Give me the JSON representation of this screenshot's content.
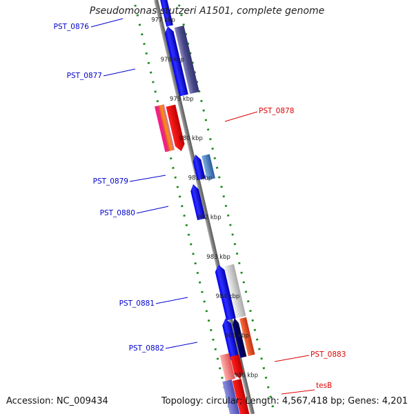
{
  "title": "Pseudomonas stutzeri A1501, complete genome",
  "footer": {
    "accession": "Accession: NC_009434",
    "topology": "Topology: circular; Length: 4,567,418 bp; Genes: 4,201"
  },
  "colors": {
    "backbone": "#888888",
    "ticks": "#1a8a1a",
    "left_label": "#0000cc",
    "right_label": "#dd0000"
  },
  "scale_ticks": [
    "977 kbp",
    "978 kbp",
    "979 kbp",
    "980 kbp",
    "981 kbp",
    "982 kbp",
    "983 kbp",
    "984 kbp",
    "985 kbp",
    "986 kbp"
  ],
  "genes": [
    {
      "id": "PST_0876",
      "side": "left"
    },
    {
      "id": "PST_0877",
      "side": "left"
    },
    {
      "id": "PST_0878",
      "side": "right"
    },
    {
      "id": "PST_0879",
      "side": "left"
    },
    {
      "id": "PST_0880",
      "side": "left"
    },
    {
      "id": "PST_0881",
      "side": "left"
    },
    {
      "id": "PST_0882",
      "side": "left"
    },
    {
      "id": "PST_0883",
      "side": "right"
    },
    {
      "id": "tesB",
      "side": "right"
    }
  ]
}
